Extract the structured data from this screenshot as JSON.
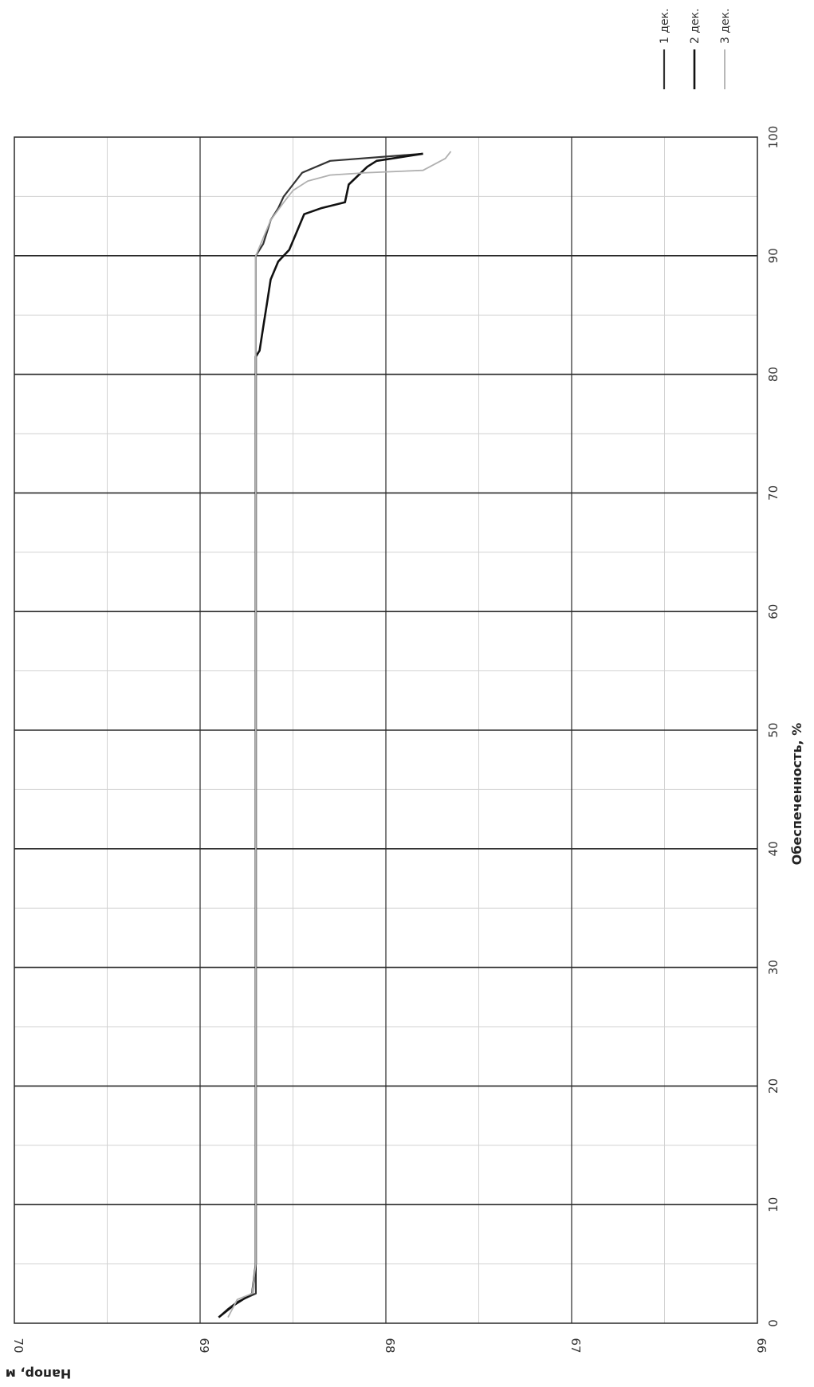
{
  "chart_data": {
    "type": "line",
    "orientation": "rotated-90-clockwise",
    "xlabel": "Обеспеченность, %",
    "ylabel": "Напор, м",
    "xlim": [
      0,
      100
    ],
    "ylim": [
      66,
      70
    ],
    "x_ticks": [
      "0",
      "10",
      "20",
      "30",
      "40",
      "50",
      "60",
      "70",
      "80",
      "90",
      "100"
    ],
    "y_ticks": [
      "70",
      "69",
      "68",
      "67",
      "66"
    ],
    "grid": true,
    "legend_position": "top-right",
    "colors": {
      "1 дек.": "#333333",
      "2 дек.": "#111111",
      "3 дек.": "#b0b0b0",
      "grid_major": "#2a2a2a",
      "grid_minor": "#d2d2d2"
    },
    "series": [
      {
        "name": "1 дек.",
        "points": [
          [
            0.5,
            68.9
          ],
          [
            1.2,
            68.85
          ],
          [
            1.8,
            68.8
          ],
          [
            2.5,
            68.7
          ],
          [
            5,
            68.7
          ],
          [
            20,
            68.7
          ],
          [
            40,
            68.7
          ],
          [
            60,
            68.7
          ],
          [
            80,
            68.7
          ],
          [
            90,
            68.7
          ],
          [
            91,
            68.66
          ],
          [
            92,
            68.64
          ],
          [
            93,
            68.62
          ],
          [
            94,
            68.58
          ],
          [
            95,
            68.55
          ],
          [
            96,
            68.5
          ],
          [
            97,
            68.45
          ],
          [
            98,
            68.3
          ],
          [
            98.6,
            67.8
          ]
        ]
      },
      {
        "name": "2 дек.",
        "points": [
          [
            0.5,
            68.9
          ],
          [
            1.5,
            68.82
          ],
          [
            2.5,
            68.72
          ],
          [
            5,
            68.7
          ],
          [
            20,
            68.7
          ],
          [
            40,
            68.7
          ],
          [
            60,
            68.7
          ],
          [
            80,
            68.7
          ],
          [
            81.5,
            68.7
          ],
          [
            82,
            68.68
          ],
          [
            84,
            68.66
          ],
          [
            86,
            68.64
          ],
          [
            88,
            68.62
          ],
          [
            89.5,
            68.58
          ],
          [
            90.5,
            68.52
          ],
          [
            92,
            68.48
          ],
          [
            93.5,
            68.44
          ],
          [
            94,
            68.35
          ],
          [
            94.5,
            68.22
          ],
          [
            96,
            68.2
          ],
          [
            97.5,
            68.1
          ],
          [
            98,
            68.05
          ],
          [
            98.6,
            67.8
          ]
        ]
      },
      {
        "name": "3 дек.",
        "points": [
          [
            0.5,
            68.85
          ],
          [
            2,
            68.8
          ],
          [
            2.5,
            68.72
          ],
          [
            5,
            68.7
          ],
          [
            20,
            68.7
          ],
          [
            40,
            68.7
          ],
          [
            60,
            68.7
          ],
          [
            80,
            68.7
          ],
          [
            90,
            68.7
          ],
          [
            91.5,
            68.66
          ],
          [
            93,
            68.62
          ],
          [
            94.5,
            68.55
          ],
          [
            95.5,
            68.5
          ],
          [
            96.3,
            68.42
          ],
          [
            96.8,
            68.3
          ],
          [
            97,
            68.1
          ],
          [
            97.2,
            67.8
          ],
          [
            98.2,
            67.68
          ],
          [
            98.8,
            67.65
          ]
        ]
      }
    ]
  }
}
